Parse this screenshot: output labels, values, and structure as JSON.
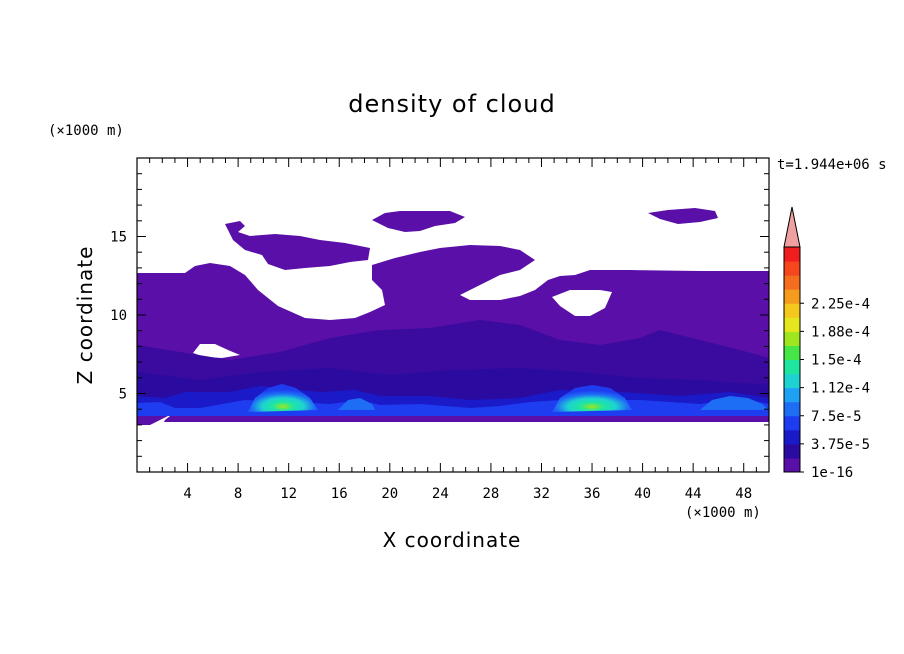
{
  "chart_data": {
    "type": "heatmap",
    "title": "density of cloud",
    "xlabel": "X coordinate",
    "ylabel": "Z coordinate",
    "x_unit": "(×1000 m)",
    "y_unit": "(×1000 m)",
    "time_label": "t=1.944e+06 s",
    "xlim": [
      0,
      50
    ],
    "ylim": [
      0,
      20
    ],
    "x_ticks": [
      4,
      8,
      12,
      16,
      20,
      24,
      28,
      32,
      36,
      40,
      44,
      48
    ],
    "y_ticks": [
      5,
      10,
      15
    ],
    "colorbar": {
      "labels": [
        "1e-16",
        "3.75e-5",
        "7.5e-5",
        "1.12e-4",
        "1.5e-4",
        "1.88e-4",
        "2.25e-4"
      ],
      "colors": [
        "#5a0fa8",
        "#2b0aa0",
        "#1a1ac8",
        "#1e3cf0",
        "#1e6ef5",
        "#1ea0f5",
        "#1ed2d2",
        "#1ee6a0",
        "#46e646",
        "#a0e61e",
        "#e6e61e",
        "#f5c81e",
        "#f59b1e",
        "#f56e1e",
        "#f5461e",
        "#f01e1e"
      ],
      "over_color": "#f0a0a0"
    },
    "features": [
      {
        "name": "base cloud layer",
        "x": [
          0,
          50
        ],
        "z": [
          3.2,
          12.5
        ],
        "level": 0
      },
      {
        "name": "upper cloud patch 1",
        "x": [
          7,
          19
        ],
        "z": [
          13,
          15.5
        ],
        "level": 0
      },
      {
        "name": "upper cloud patch 2",
        "x": [
          18,
          26
        ],
        "z": [
          15.5,
          16.5
        ],
        "level": 0
      },
      {
        "name": "upper cloud patch 3",
        "x": [
          40,
          45
        ],
        "z": [
          15.7,
          16.6
        ],
        "level": 0
      },
      {
        "name": "dense core 1",
        "x": [
          9,
          14
        ],
        "z": [
          4,
          5.5
        ],
        "peak": 0.00015
      },
      {
        "name": "dense core 2",
        "x": [
          33,
          39
        ],
        "z": [
          4,
          5.5
        ],
        "peak": 0.00015
      }
    ]
  }
}
